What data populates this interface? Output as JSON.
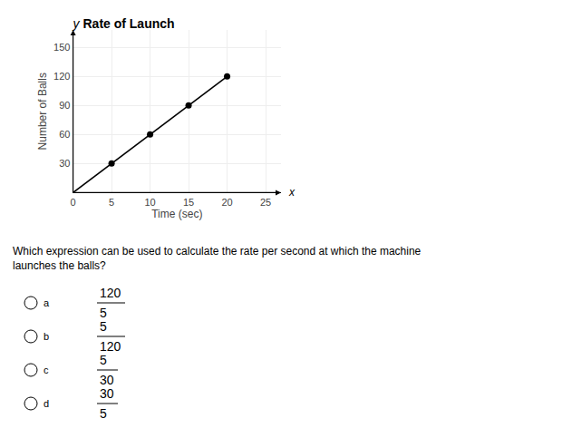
{
  "chart_data": {
    "type": "line",
    "title": "Rate of Launch",
    "xlabel": "Time (sec)",
    "ylabel": "Number of Balls",
    "series": [
      {
        "type": "line",
        "x": [
          0,
          5,
          10,
          15,
          20
        ],
        "values": [
          0,
          30,
          60,
          90,
          120
        ],
        "color": "#000000"
      },
      {
        "type": "scatter",
        "x": [
          5,
          10,
          15,
          20
        ],
        "values": [
          30,
          60,
          90,
          120
        ],
        "color": "#000000"
      }
    ],
    "xlim": [
      0,
      27
    ],
    "ylim": [
      0,
      168
    ],
    "xticks": [
      0,
      5,
      10,
      15,
      20,
      25
    ],
    "yticks": [
      30,
      60,
      90,
      120,
      150
    ],
    "grid": true,
    "annotations": [
      "y",
      "x",
      "Which expression can be used to calculate the rate per second at which the machine launches the balls?",
      [
        "a",
        "120",
        "5"
      ],
      [
        "b",
        "5",
        "120"
      ],
      [
        "c",
        "5",
        "30"
      ],
      [
        "d",
        "30",
        "5"
      ]
    ]
  }
}
